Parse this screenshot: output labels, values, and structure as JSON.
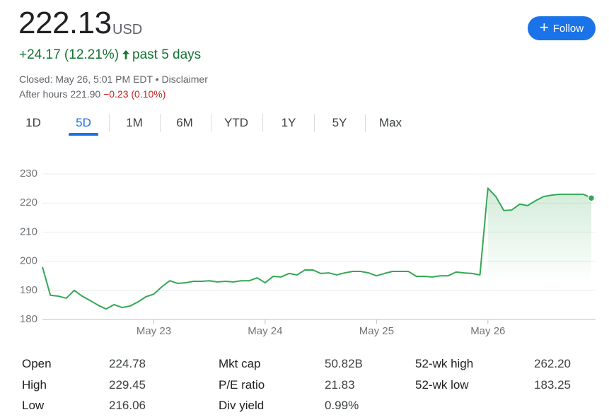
{
  "header": {
    "price": "222.13",
    "currency": "USD",
    "change": "+24.17 (12.21%)",
    "period": "past 5 days",
    "closed": "Closed: May 26, 5:01 PM EDT",
    "separator": "•",
    "disclaimer": "Disclaimer",
    "after_hours": "After hours 221.90",
    "after_hours_change": "−0.23 (0.10%)"
  },
  "follow_button": {
    "icon": "+",
    "label": "Follow"
  },
  "tabs": {
    "items": [
      "1D",
      "5D",
      "1M",
      "6M",
      "YTD",
      "1Y",
      "5Y",
      "Max"
    ],
    "active": 1
  },
  "chart_data": {
    "type": "line",
    "categories": [
      null,
      null,
      null,
      null,
      null,
      null,
      null,
      null,
      null,
      null,
      null,
      null,
      null,
      null,
      "May 23",
      null,
      null,
      null,
      null,
      null,
      null,
      null,
      null,
      null,
      null,
      null,
      null,
      null,
      "May 24",
      null,
      null,
      null,
      null,
      null,
      null,
      null,
      null,
      null,
      null,
      null,
      null,
      null,
      "May 25",
      null,
      null,
      null,
      null,
      null,
      null,
      null,
      null,
      null,
      null,
      null,
      null,
      null,
      "May 26",
      null,
      null,
      null,
      null,
      null,
      null,
      null,
      null,
      null,
      null,
      null,
      null,
      null
    ],
    "series": [
      {
        "color": "#34a853",
        "values": [
          198,
          188.3,
          188,
          187.3,
          190,
          188,
          186.5,
          184.9,
          183.6,
          185.1,
          184.1,
          184.6,
          186,
          187.8,
          188.7,
          191.2,
          193.3,
          192.4,
          192.6,
          193.1,
          193.1,
          193.3,
          192.9,
          193.1,
          192.9,
          193.3,
          193.3,
          194.3,
          192.6,
          194.8,
          194.6,
          195.8,
          195.3,
          197,
          197,
          195.8,
          196,
          195.3,
          196,
          196.5,
          196.5,
          196,
          195,
          195.8,
          196.5,
          196.5,
          196.5,
          194.8,
          194.8,
          194.6,
          195,
          195,
          196.3,
          196,
          195.8,
          195.3,
          225.1,
          222.2,
          217.4,
          217.6,
          219.6,
          219.1,
          220.8,
          222.2,
          222.7,
          223,
          223,
          223,
          223,
          221.7
        ]
      }
    ],
    "ylim": [
      180,
      230
    ],
    "yticks": [
      180,
      190,
      200,
      210,
      220,
      230
    ],
    "grid": true
  },
  "stats": [
    [
      [
        "Open",
        "224.78"
      ],
      [
        "High",
        "229.45"
      ],
      [
        "Low",
        "216.06"
      ]
    ],
    [
      [
        "Mkt cap",
        "50.82B"
      ],
      [
        "P/E ratio",
        "21.83"
      ],
      [
        "Div yield",
        "0.99%"
      ]
    ],
    [
      [
        "52-wk high",
        "262.20"
      ],
      [
        "52-wk low",
        "183.25"
      ]
    ]
  ]
}
